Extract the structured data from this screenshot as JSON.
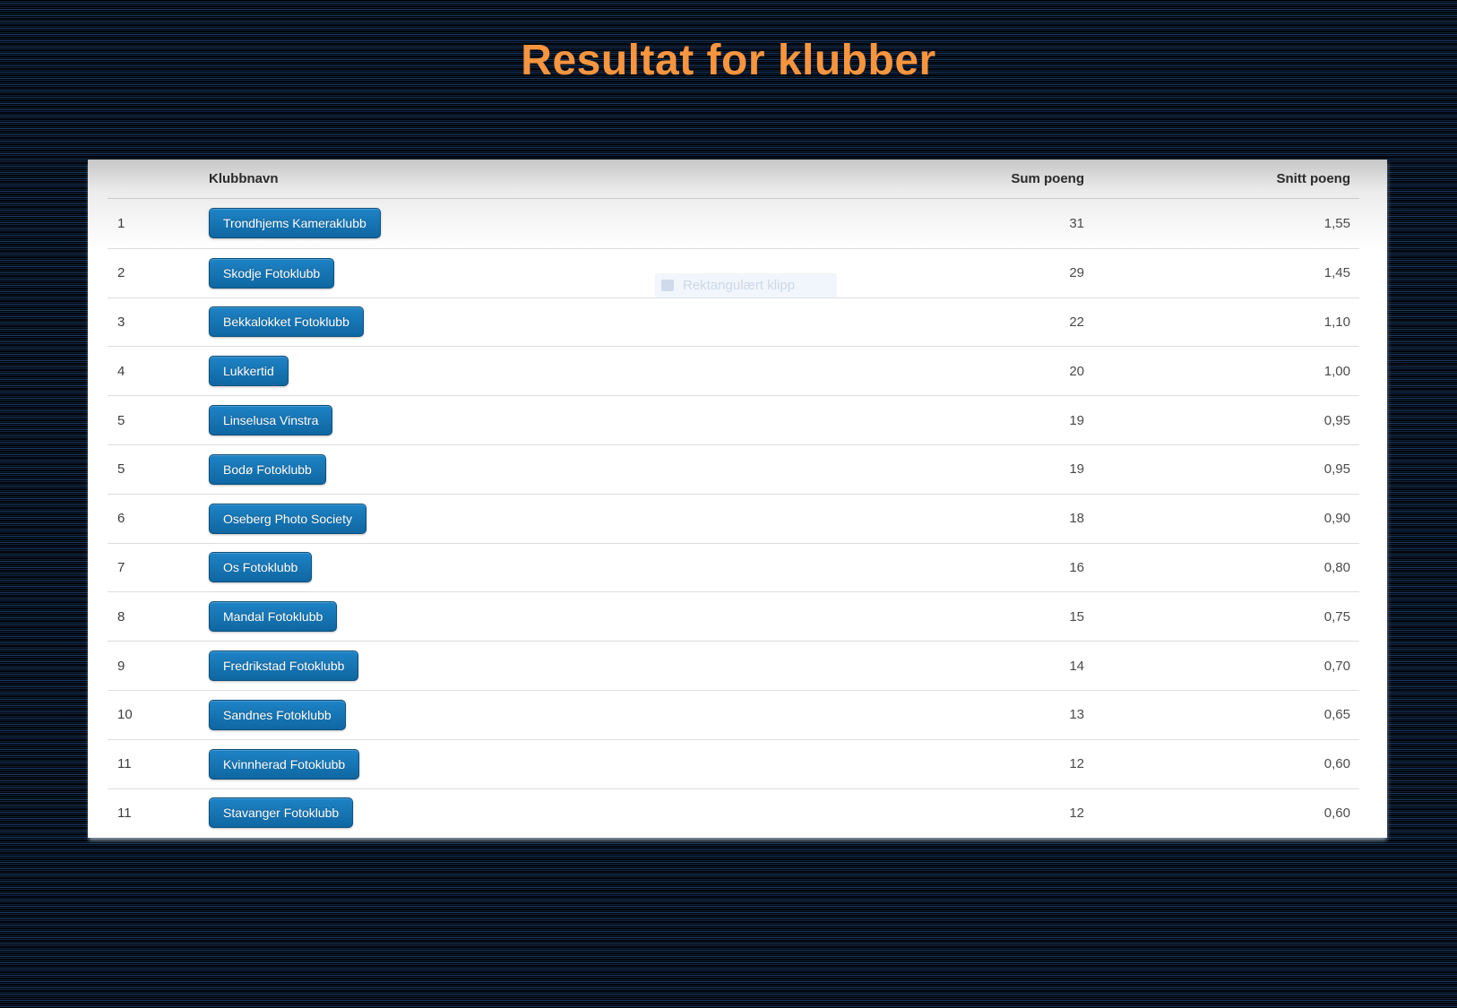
{
  "title": "Resultat for klubber",
  "table": {
    "headers": {
      "klubbnavn": "Klubbnavn",
      "sum": "Sum poeng",
      "snitt": "Snitt poeng"
    },
    "rows": [
      {
        "rank": "1",
        "club": "Trondhjems Kameraklubb",
        "sum": "31",
        "snitt": "1,55"
      },
      {
        "rank": "2",
        "club": "Skodje Fotoklubb",
        "sum": "29",
        "snitt": "1,45"
      },
      {
        "rank": "3",
        "club": "Bekkalokket Fotoklubb",
        "sum": "22",
        "snitt": "1,10"
      },
      {
        "rank": "4",
        "club": "Lukkertid",
        "sum": "20",
        "snitt": "1,00"
      },
      {
        "rank": "5",
        "club": "Linselusa Vinstra",
        "sum": "19",
        "snitt": "0,95"
      },
      {
        "rank": "5",
        "club": "Bodø Fotoklubb",
        "sum": "19",
        "snitt": "0,95"
      },
      {
        "rank": "6",
        "club": "Oseberg Photo Society",
        "sum": "18",
        "snitt": "0,90"
      },
      {
        "rank": "7",
        "club": "Os Fotoklubb",
        "sum": "16",
        "snitt": "0,80"
      },
      {
        "rank": "8",
        "club": "Mandal Fotoklubb",
        "sum": "15",
        "snitt": "0,75"
      },
      {
        "rank": "9",
        "club": "Fredrikstad Fotoklubb",
        "sum": "14",
        "snitt": "0,70"
      },
      {
        "rank": "10",
        "club": "Sandnes Fotoklubb",
        "sum": "13",
        "snitt": "0,65"
      },
      {
        "rank": "11",
        "club": "Kvinnherad Fotoklubb",
        "sum": "12",
        "snitt": "0,60"
      },
      {
        "rank": "11",
        "club": "Stavanger Fotoklubb",
        "sum": "12",
        "snitt": "0,60"
      }
    ]
  },
  "overlay": {
    "label": "Rektangulært klipp"
  },
  "colors": {
    "accent_orange": "#F7953F",
    "button_blue_top": "#1E83C6",
    "button_blue_bottom": "#0F67A1",
    "background_navy": "#0E2442"
  }
}
